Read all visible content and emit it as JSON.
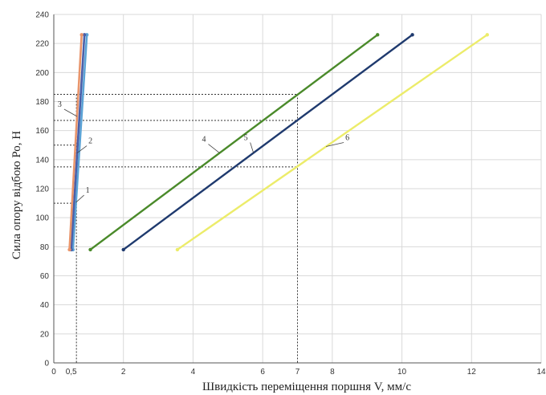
{
  "chart_data": {
    "type": "line",
    "title": "",
    "xlabel": "Швидкість переміщення поршня V, мм/с",
    "ylabel": "Сила опору відбою Ро, Н",
    "xlim": [
      0,
      14
    ],
    "ylim": [
      0,
      240
    ],
    "x_ticks": [
      {
        "value": 0,
        "label": "0"
      },
      {
        "value": 0.5,
        "label": "0,5"
      },
      {
        "value": 2,
        "label": "2"
      },
      {
        "value": 4,
        "label": "4"
      },
      {
        "value": 6,
        "label": "6"
      },
      {
        "value": 7,
        "label": "7"
      },
      {
        "value": 8,
        "label": "8"
      },
      {
        "value": 10,
        "label": "10"
      },
      {
        "value": 12,
        "label": "12"
      },
      {
        "value": 14,
        "label": "14"
      }
    ],
    "y_ticks": [
      0,
      20,
      40,
      60,
      80,
      100,
      120,
      140,
      160,
      180,
      200,
      220,
      240
    ],
    "grid": true,
    "series": [
      {
        "name": "1",
        "color": "#5ba3d6",
        "points": [
          [
            0.55,
            78
          ],
          [
            0.95,
            226
          ]
        ]
      },
      {
        "name": "2",
        "color": "#4b5fa8",
        "points": [
          [
            0.5,
            78
          ],
          [
            0.88,
            226
          ]
        ]
      },
      {
        "name": "3",
        "color": "#e8956c",
        "points": [
          [
            0.45,
            78
          ],
          [
            0.8,
            226
          ]
        ]
      },
      {
        "name": "4",
        "color": "#4a8a2a",
        "points": [
          [
            1.05,
            78
          ],
          [
            9.3,
            226
          ]
        ]
      },
      {
        "name": "5",
        "color": "#1f3a6e",
        "points": [
          [
            2.0,
            78
          ],
          [
            10.3,
            226
          ]
        ]
      },
      {
        "name": "6",
        "color": "#ecec6a",
        "points": [
          [
            3.55,
            78
          ],
          [
            12.45,
            226
          ]
        ]
      }
    ],
    "reference_lines": {
      "horizontal": [
        110,
        135,
        150,
        167,
        185
      ],
      "vertical": [
        0.65,
        7
      ]
    }
  }
}
